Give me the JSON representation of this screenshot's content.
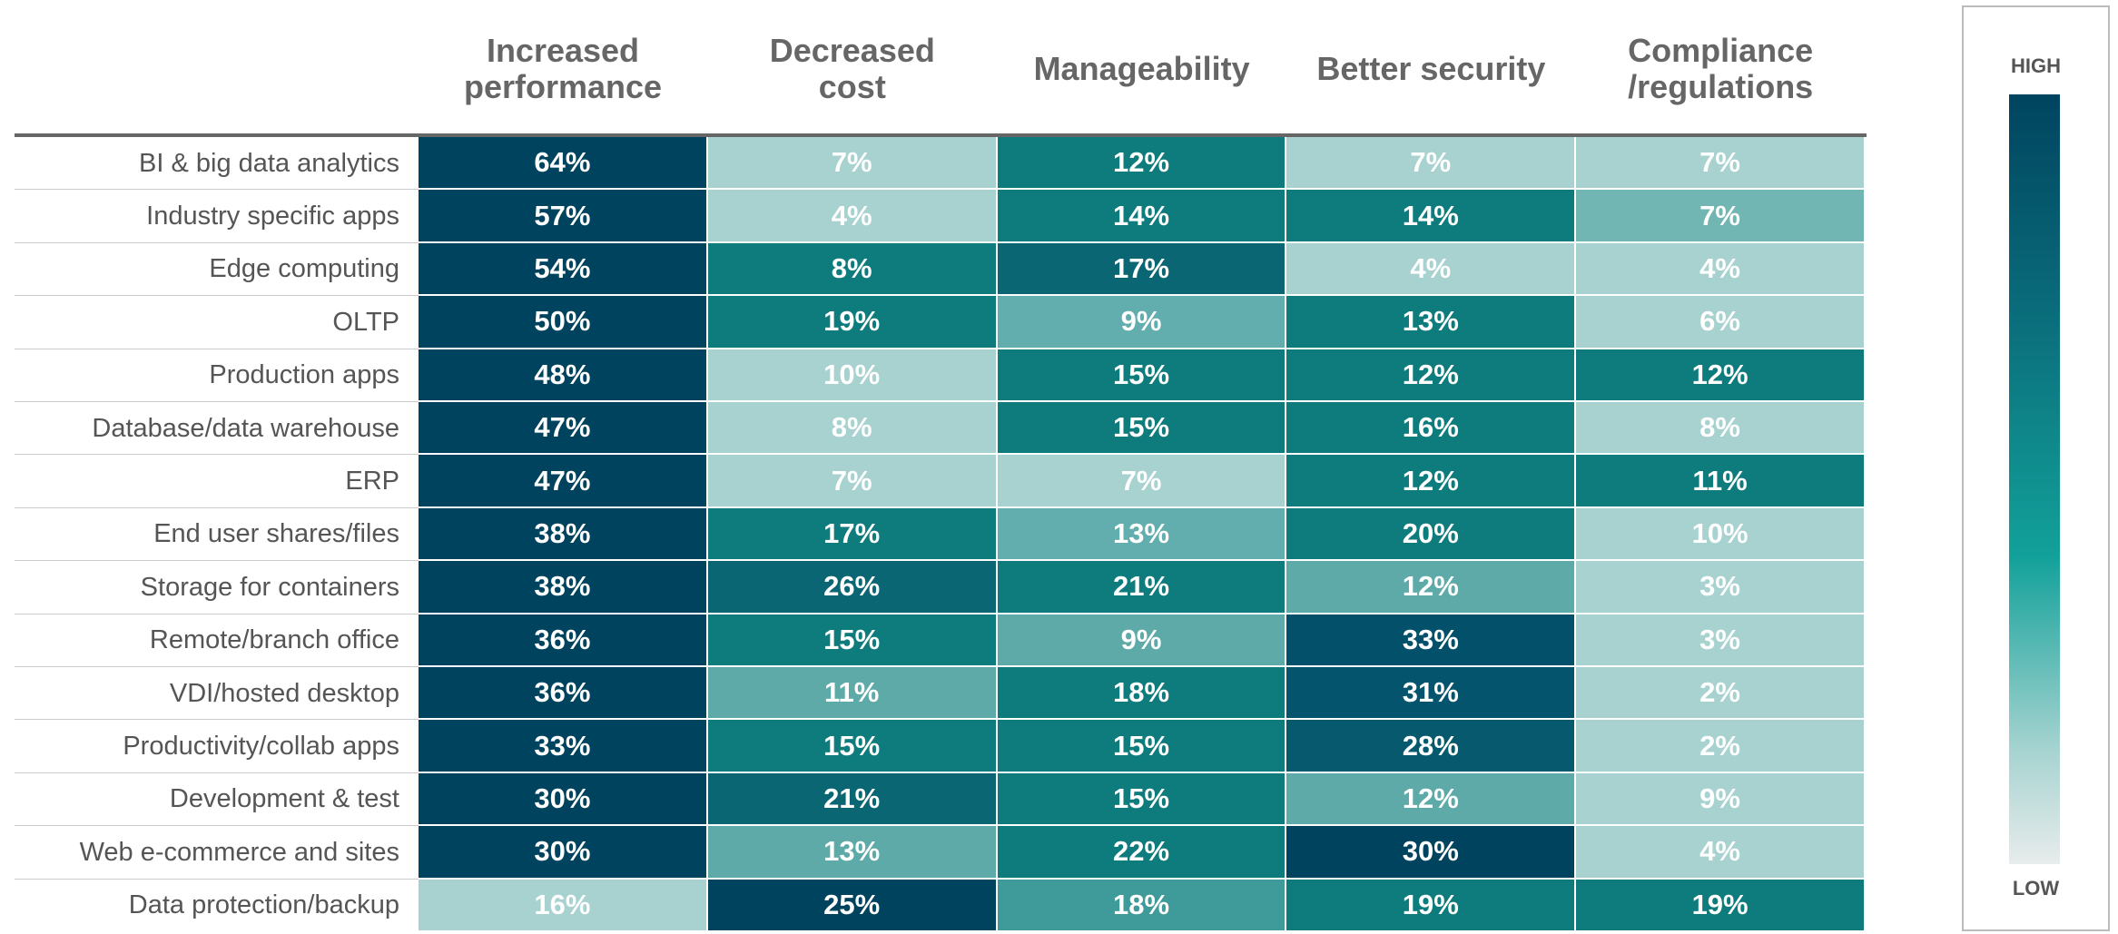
{
  "chart_data": {
    "type": "heatmap",
    "columns": [
      "Increased performance",
      "Decreased cost",
      "Manageability",
      "Better security",
      "Compliance /regulations"
    ],
    "categories": [
      "BI & big data analytics",
      "Industry specific apps",
      "Edge computing",
      "OLTP",
      "Production apps",
      "Database/data warehouse",
      "ERP",
      "End user shares/files",
      "Storage for containers",
      "Remote/branch office",
      "VDI/hosted desktop",
      "Productivity/collab apps",
      "Development & test",
      "Web e-commerce and sites",
      "Data protection/backup"
    ],
    "values": [
      [
        64,
        7,
        12,
        7,
        7
      ],
      [
        57,
        4,
        14,
        14,
        7
      ],
      [
        54,
        8,
        17,
        4,
        4
      ],
      [
        50,
        19,
        9,
        13,
        6
      ],
      [
        48,
        10,
        15,
        12,
        12
      ],
      [
        47,
        8,
        15,
        16,
        8
      ],
      [
        47,
        7,
        7,
        12,
        11
      ],
      [
        38,
        17,
        13,
        20,
        10
      ],
      [
        38,
        26,
        21,
        12,
        3
      ],
      [
        36,
        15,
        9,
        33,
        3
      ],
      [
        36,
        11,
        18,
        31,
        2
      ],
      [
        33,
        15,
        15,
        28,
        2
      ],
      [
        30,
        21,
        15,
        12,
        9
      ],
      [
        30,
        13,
        22,
        30,
        4
      ],
      [
        16,
        25,
        18,
        19,
        19
      ]
    ],
    "value_labels": [
      [
        "64%",
        "7%",
        "12%",
        "7%",
        "7%"
      ],
      [
        "57%",
        "4%",
        "14%",
        "14%",
        "7%"
      ],
      [
        "54%",
        "8%",
        "17%",
        "4%",
        "4%"
      ],
      [
        "50%",
        "19%",
        "9%",
        "13%",
        "6%"
      ],
      [
        "48%",
        "10%",
        "15%",
        "12%",
        "12%"
      ],
      [
        "47%",
        "8%",
        "15%",
        "16%",
        "8%"
      ],
      [
        "47%",
        "7%",
        "7%",
        "12%",
        "11%"
      ],
      [
        "38%",
        "17%",
        "13%",
        "20%",
        "10%"
      ],
      [
        "38%",
        "26%",
        "21%",
        "12%",
        "3%"
      ],
      [
        "36%",
        "15%",
        "9%",
        "33%",
        "3%"
      ],
      [
        "36%",
        "11%",
        "18%",
        "31%",
        "2%"
      ],
      [
        "33%",
        "15%",
        "15%",
        "28%",
        "2%"
      ],
      [
        "30%",
        "21%",
        "15%",
        "12%",
        "9%"
      ],
      [
        "30%",
        "13%",
        "22%",
        "30%",
        "4%"
      ],
      [
        "16%",
        "25%",
        "18%",
        "19%",
        "19%"
      ]
    ],
    "colors": [
      [
        "#00435e",
        "#a7d2d0",
        "#0e7c7d",
        "#a7d2d0",
        "#a7d2d0"
      ],
      [
        "#00435e",
        "#a7d2d0",
        "#0e7c7d",
        "#0e7c7d",
        "#72b6b4"
      ],
      [
        "#00435e",
        "#0e7c7d",
        "#0b6674",
        "#a7d2d0",
        "#a7d2d0"
      ],
      [
        "#00435e",
        "#0e7c7d",
        "#62adad",
        "#0e7c7d",
        "#a7d2d0"
      ],
      [
        "#00435e",
        "#a7d2d0",
        "#0e7c7d",
        "#0e7c7d",
        "#0e7c7d"
      ],
      [
        "#00435e",
        "#a7d2d0",
        "#0e7c7d",
        "#0e7c7d",
        "#a7d2d0"
      ],
      [
        "#00435e",
        "#a7d2d0",
        "#a7d2d0",
        "#0e7c7d",
        "#0e7c7d"
      ],
      [
        "#00435e",
        "#0e7c7d",
        "#62adad",
        "#0e7c7d",
        "#a7d2d0"
      ],
      [
        "#00435e",
        "#0b6674",
        "#0e7c7d",
        "#5eaaa9",
        "#a7d2d0"
      ],
      [
        "#00435e",
        "#0e7c7d",
        "#5eaaa9",
        "#02506a",
        "#a7d2d0"
      ],
      [
        "#00435e",
        "#5eaaa9",
        "#0e7c7d",
        "#03546c",
        "#a7d2d0"
      ],
      [
        "#00435e",
        "#0e7c7d",
        "#0e7c7d",
        "#075a6e",
        "#a7d2d0"
      ],
      [
        "#00435e",
        "#0b6674",
        "#0e7c7d",
        "#5eaaa9",
        "#a7d2d0"
      ],
      [
        "#00435e",
        "#5eaaa9",
        "#0e7c7d",
        "#00435e",
        "#a7d2d0"
      ],
      [
        "#a7d2d0",
        "#00435e",
        "#3f9a9a",
        "#0e7c7d",
        "#0e7c7d"
      ]
    ],
    "legend": {
      "high": "HIGH",
      "low": "LOW"
    }
  }
}
